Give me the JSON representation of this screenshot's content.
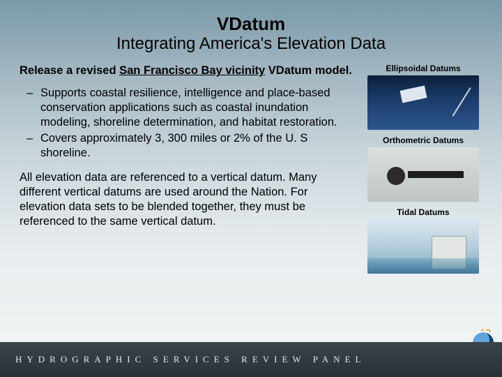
{
  "title": {
    "main": "VDatum",
    "sub": "Integrating America's Elevation Data"
  },
  "lead": {
    "prefix": "Release a revised ",
    "underlined": "San Francisco Bay vicinity",
    "suffix": " VDatum model."
  },
  "bullets": [
    "Supports coastal resilience, intelligence and place-based conservation applications such as coastal inundation modeling, shoreline determination, and habitat restoration.",
    "Covers approximately 3, 300 miles or 2% of the U. S shoreline."
  ],
  "paragraph": "All elevation data are referenced to a vertical datum. Many different vertical datums are used around the Nation.  For elevation data sets to be blended together, they must be referenced to the same vertical datum.",
  "datums": {
    "ellipsoidal": "Ellipsoidal Datums",
    "orthometric": "Orthometric Datums",
    "tidal": "Tidal Datums"
  },
  "footer": {
    "text": "HYDROGRAPHIC  SERVICES  REVIEW  PANEL",
    "watermark": "noaa"
  },
  "page_number": "12",
  "colors": {
    "bg_top": "#7a99a8",
    "bg_bottom": "#f4f6f6",
    "footer_bg": "#2a3238",
    "page_num": "#e08a00"
  }
}
